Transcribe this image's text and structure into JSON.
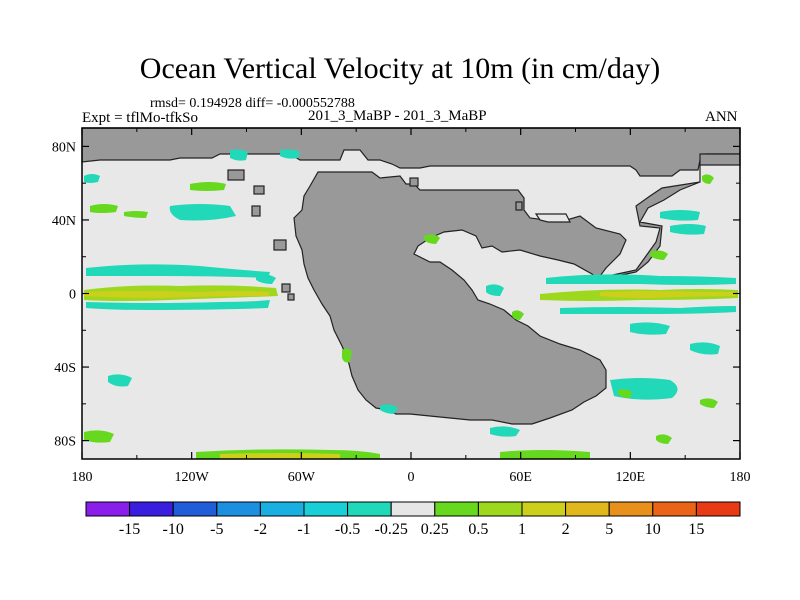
{
  "title": "Ocean Vertical Velocity at 10m (in cm/day)",
  "stats_line": "rmsd= 0.194928 diff= -0.000552788",
  "left_label": "Expt = tflMo-tfkSo",
  "center_label": "201_3_MaBP - 201_3_MaBP",
  "right_label": "ANN",
  "map": {
    "y_axis_labels": [
      "80N",
      "40N",
      "0",
      "40S",
      "80S"
    ],
    "y_axis_values": [
      80,
      40,
      0,
      -40,
      -80
    ],
    "x_axis_labels": [
      "180",
      "120W",
      "60W",
      "0",
      "60E",
      "120E",
      "180"
    ],
    "x_axis_values": [
      -180,
      -120,
      -60,
      0,
      60,
      120,
      180
    ],
    "lat_range": [
      -90,
      90
    ],
    "lon_range": [
      -180,
      180
    ],
    "land_color": "#999999",
    "ocean_color": "#e8e8e8"
  },
  "colorbar": {
    "labels": [
      "-15",
      "-10",
      "-5",
      "-2",
      "-1",
      "-0.5",
      "-0.25",
      "0.25",
      "0.5",
      "1",
      "2",
      "5",
      "10",
      "15"
    ],
    "colors": [
      "#8a1eea",
      "#3a1ee0",
      "#1f5ed8",
      "#1b8fe0",
      "#18b0e0",
      "#18cfd8",
      "#21d8b8",
      "#e6e6e6",
      "#66d81e",
      "#9ed81e",
      "#ccd01c",
      "#e0b81c",
      "#e8901c",
      "#ea6418",
      "#e83a14"
    ]
  }
}
